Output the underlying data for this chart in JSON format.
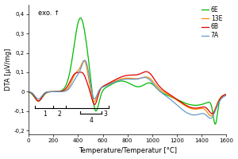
{
  "title": "",
  "xlabel": "Temperature/Temperatur [°C]",
  "ylabel": "DTA [µV/mg]",
  "xlim": [
    0,
    1600
  ],
  "ylim": [
    -0.22,
    0.45
  ],
  "yticks": [
    -0.2,
    -0.1,
    0.0,
    0.1,
    0.2,
    0.3,
    0.4
  ],
  "ytick_labels": [
    "-0,2",
    "-0,1",
    "0",
    "0,1",
    "0,2",
    "0,3",
    "0,4"
  ],
  "xticks": [
    0,
    200,
    400,
    600,
    800,
    1000,
    1200,
    1400,
    1600
  ],
  "legend_labels": [
    "6E",
    "13E",
    "6B",
    "7A"
  ],
  "legend_colors": [
    "#00bb00",
    "#ff8800",
    "#dd0000",
    "#6699cc"
  ],
  "exo_text": "exo. ↑",
  "background_color": "#ffffff",
  "figsize": [
    3.0,
    2.0
  ],
  "dpi": 100
}
